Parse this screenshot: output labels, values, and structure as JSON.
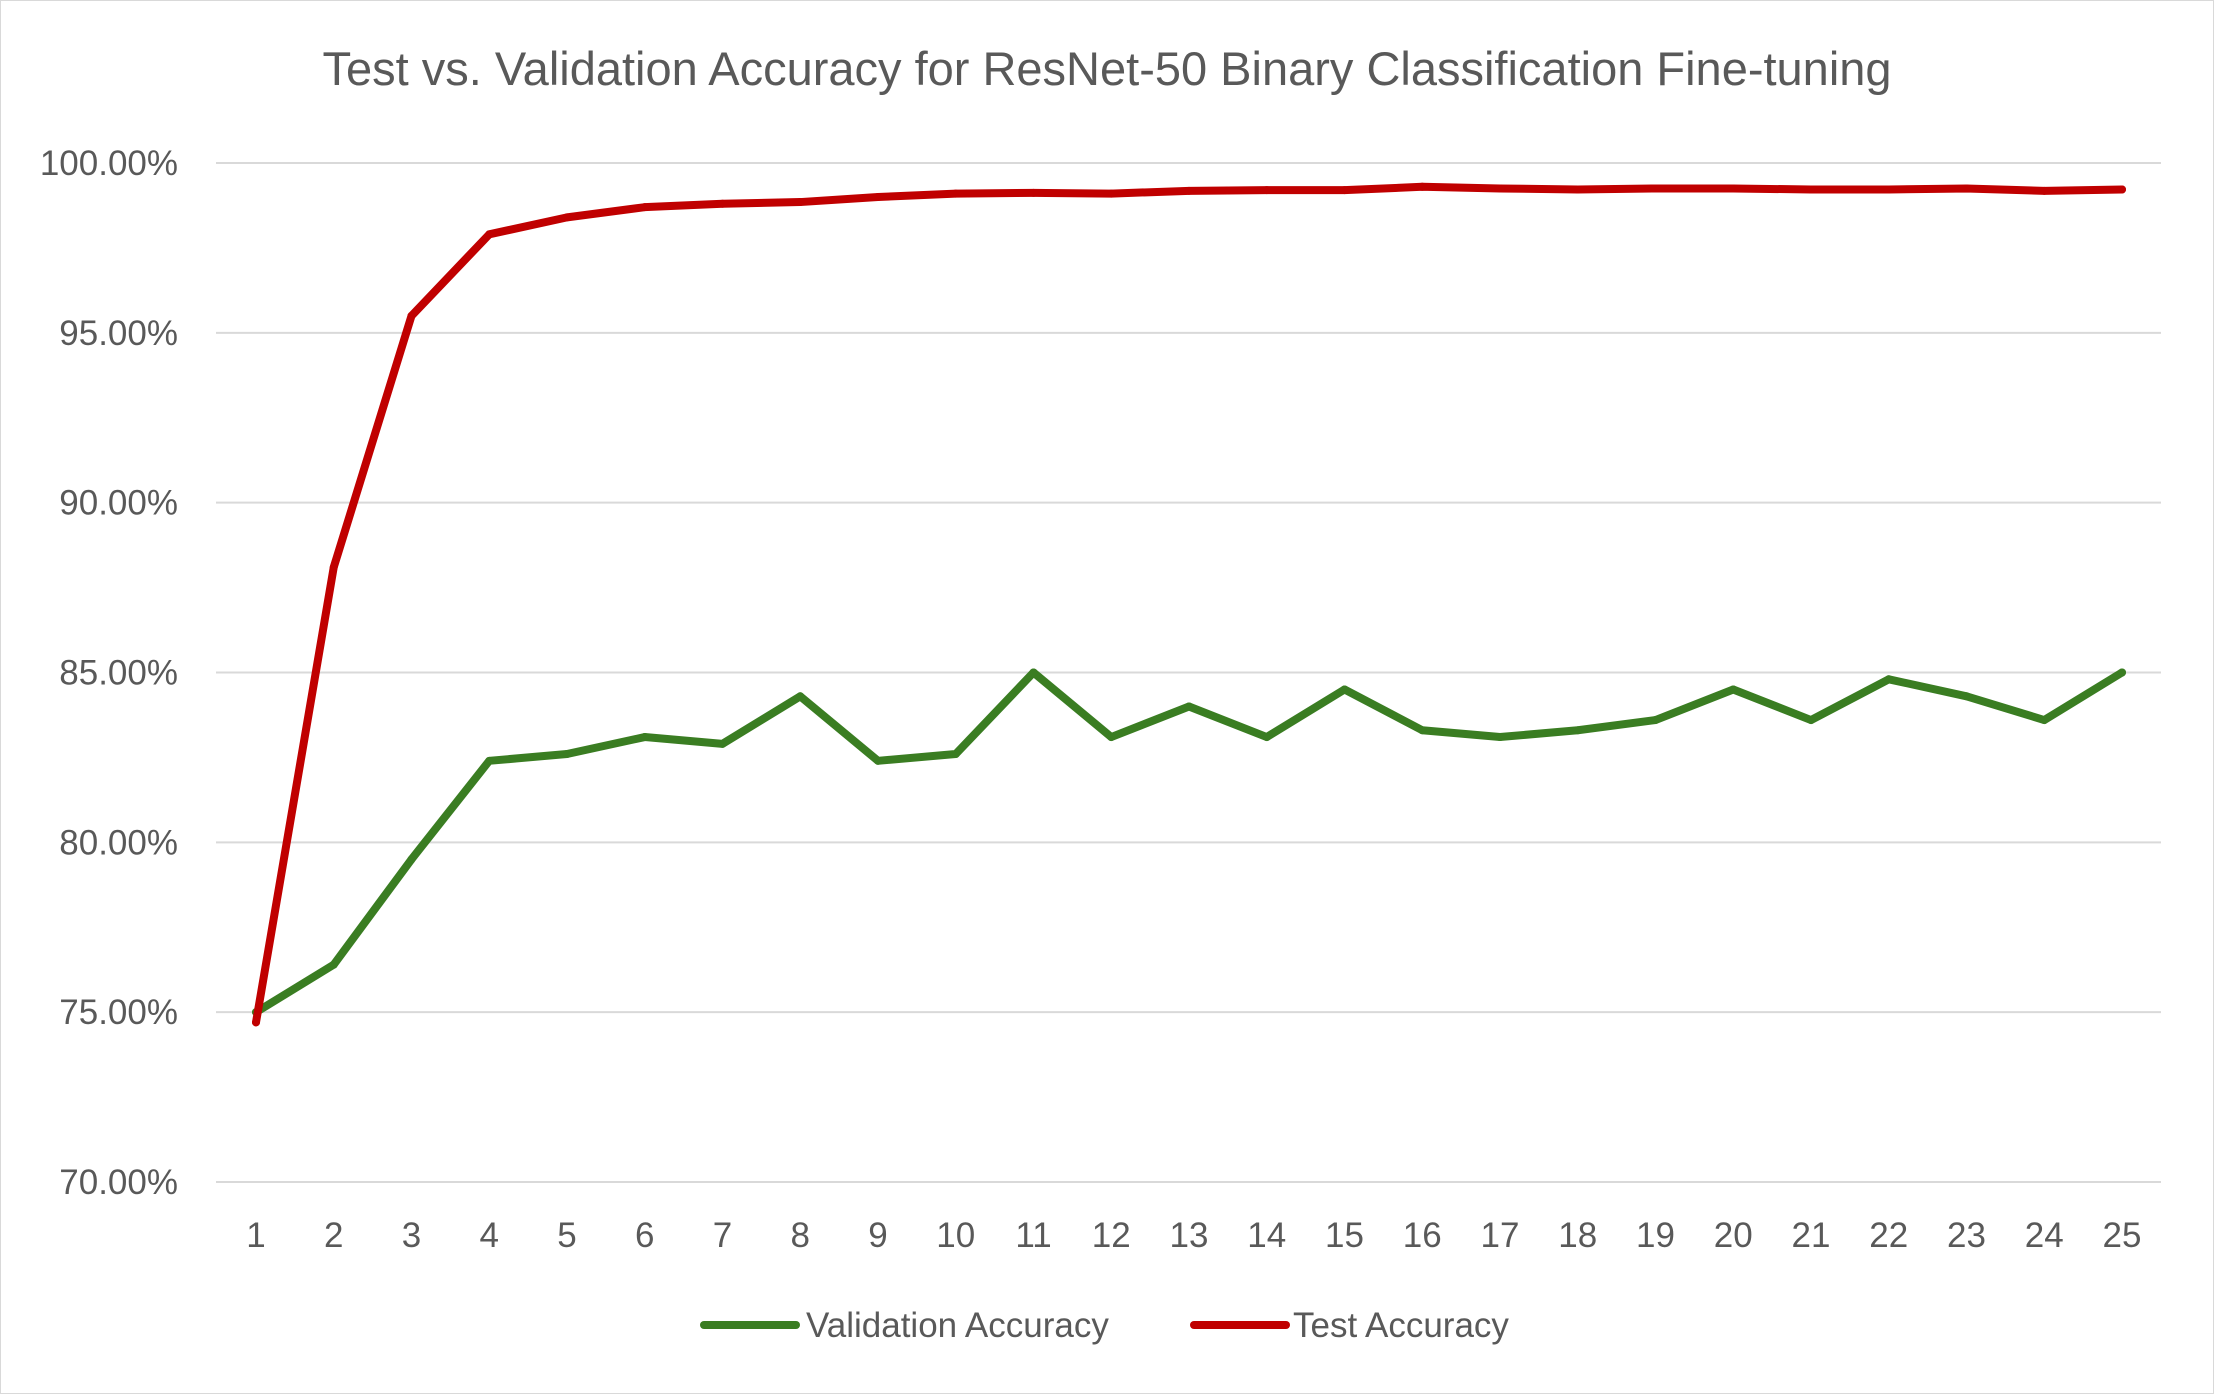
{
  "chart_data": {
    "type": "line",
    "title": "Test vs. Validation Accuracy for ResNet-50 Binary Classification Fine-tuning",
    "xlabel": "",
    "ylabel": "",
    "x": [
      1,
      2,
      3,
      4,
      5,
      6,
      7,
      8,
      9,
      10,
      11,
      12,
      13,
      14,
      15,
      16,
      17,
      18,
      19,
      20,
      21,
      22,
      23,
      24,
      25
    ],
    "x_tick_labels": [
      "1",
      "2",
      "3",
      "4",
      "5",
      "6",
      "7",
      "8",
      "9",
      "10",
      "11",
      "12",
      "13",
      "14",
      "15",
      "16",
      "17",
      "18",
      "19",
      "20",
      "21",
      "22",
      "23",
      "24",
      "25"
    ],
    "ylim": [
      0.7,
      1.0
    ],
    "y_ticks": [
      0.7,
      0.75,
      0.8,
      0.85,
      0.9,
      0.95,
      1.0
    ],
    "y_tick_labels": [
      "70.00%",
      "75.00%",
      "80.00%",
      "85.00%",
      "90.00%",
      "95.00%",
      "100.00%"
    ],
    "grid": true,
    "legend_position": "bottom",
    "series": [
      {
        "name": "Validation Accuracy",
        "color": "#3a7d22",
        "values": [
          0.75,
          0.764,
          0.795,
          0.824,
          0.826,
          0.831,
          0.829,
          0.843,
          0.824,
          0.826,
          0.85,
          0.831,
          0.84,
          0.831,
          0.845,
          0.833,
          0.831,
          0.833,
          0.836,
          0.845,
          0.836,
          0.848,
          0.843,
          0.836,
          0.85
        ]
      },
      {
        "name": "Test Accuracy",
        "color": "#c00000",
        "values": [
          0.747,
          0.881,
          0.955,
          0.979,
          0.984,
          0.987,
          0.988,
          0.9885,
          0.99,
          0.991,
          0.9912,
          0.991,
          0.9918,
          0.992,
          0.992,
          0.993,
          0.9925,
          0.9922,
          0.9925,
          0.9925,
          0.9922,
          0.9922,
          0.9925,
          0.9918,
          0.9922
        ]
      }
    ]
  }
}
